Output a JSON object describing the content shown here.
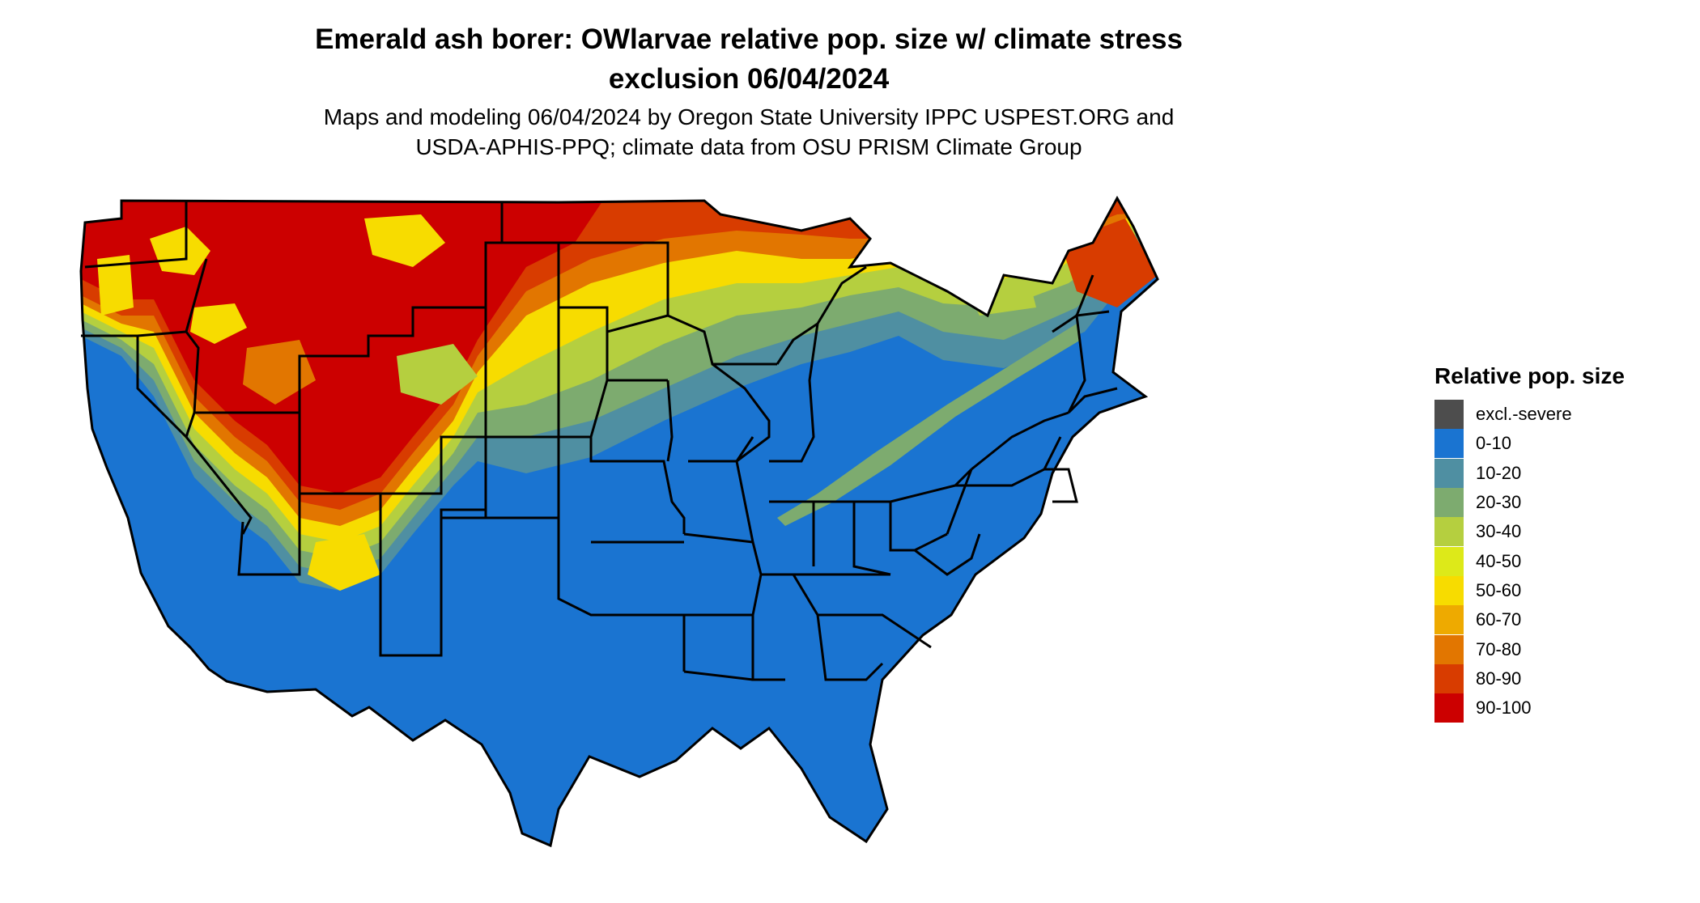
{
  "title": {
    "line1": "Emerald ash borer: OWlarvae relative pop. size w/ climate stress",
    "line2": "exclusion 06/04/2024"
  },
  "subtitle": {
    "line1": "Maps and modeling 06/04/2024 by Oregon State University IPPC USPEST.ORG and",
    "line2": "USDA-APHIS-PPQ; climate data from OSU PRISM Climate Group"
  },
  "legend": {
    "title": "Relative pop. size",
    "items": [
      {
        "label": "excl.-severe",
        "color": "#4d4d4d"
      },
      {
        "label": "0-10",
        "color": "#1a74d1"
      },
      {
        "label": "10-20",
        "color": "#4f8fa2"
      },
      {
        "label": "20-30",
        "color": "#7dab6f"
      },
      {
        "label": "30-40",
        "color": "#b5cf3f"
      },
      {
        "label": "40-50",
        "color": "#dde919"
      },
      {
        "label": "50-60",
        "color": "#f7dc00"
      },
      {
        "label": "60-70",
        "color": "#eeaa00"
      },
      {
        "label": "70-80",
        "color": "#e27600"
      },
      {
        "label": "80-90",
        "color": "#d83c00"
      },
      {
        "label": "90-100",
        "color": "#cc0000"
      }
    ]
  },
  "map": {
    "region": "contiguous-united-states",
    "state_border_color": "#000000"
  }
}
